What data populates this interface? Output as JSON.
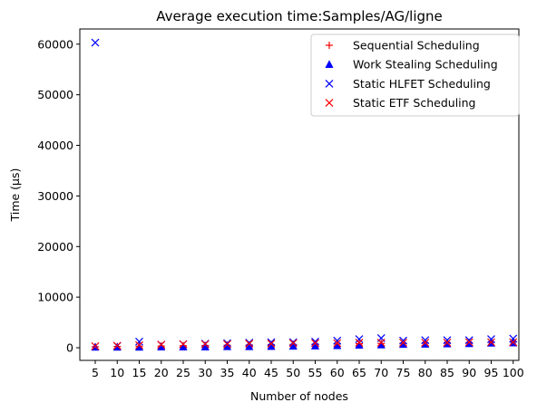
{
  "chart_data": {
    "type": "scatter",
    "title": "Average execution time:Samples/AG/ligne",
    "xlabel": "Number of nodes",
    "ylabel": "Time (µs)",
    "categories": [
      5,
      10,
      15,
      20,
      25,
      30,
      35,
      40,
      45,
      50,
      55,
      60,
      65,
      70,
      75,
      80,
      85,
      90,
      95,
      100
    ],
    "ylim": [
      -2500,
      63000
    ],
    "yticks": [
      0,
      10000,
      20000,
      30000,
      40000,
      50000,
      60000
    ],
    "ytick_labels": [
      "0",
      "10000",
      "20000",
      "30000",
      "40000",
      "50000",
      "60000"
    ],
    "legend_position": "upper-right",
    "series": [
      {
        "name": "Sequential Scheduling",
        "marker": "plus",
        "color": "#ff0000",
        "values": [
          200,
          250,
          300,
          350,
          400,
          450,
          500,
          550,
          600,
          650,
          700,
          750,
          800,
          850,
          900,
          950,
          1000,
          1050,
          1100,
          1150
        ]
      },
      {
        "name": "Work Stealing Scheduling",
        "marker": "triangle",
        "color": "#0000ff",
        "values": [
          100,
          100,
          100,
          150,
          150,
          150,
          200,
          200,
          250,
          300,
          350,
          400,
          500,
          550,
          650,
          700,
          750,
          800,
          900,
          950
        ]
      },
      {
        "name": "Static HLFET Scheduling",
        "marker": "x",
        "color": "#0000ff",
        "values": [
          60300,
          350,
          1200,
          600,
          700,
          800,
          900,
          1000,
          1100,
          1100,
          1200,
          1400,
          1700,
          1900,
          1400,
          1500,
          1500,
          1500,
          1700,
          1800
        ]
      },
      {
        "name": "Static ETF Scheduling",
        "marker": "x",
        "color": "#ff0000",
        "values": [
          300,
          400,
          500,
          600,
          700,
          700,
          700,
          800,
          800,
          900,
          900,
          900,
          1000,
          1000,
          1000,
          1000,
          1000,
          1100,
          1100,
          1100
        ]
      }
    ]
  }
}
